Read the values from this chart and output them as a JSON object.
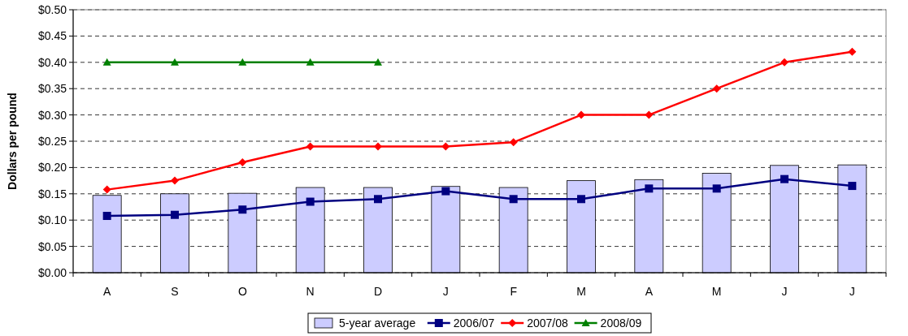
{
  "chart_data": {
    "type": "bar",
    "ylabel": "Dollars per pound",
    "categories": [
      "A",
      "S",
      "O",
      "N",
      "D",
      "J",
      "F",
      "M",
      "A",
      "M",
      "J",
      "J"
    ],
    "series": [
      {
        "name": "5-year average",
        "color": "#ccccff",
        "values": [
          0.147,
          0.15,
          0.151,
          0.162,
          0.162,
          0.164,
          0.162,
          0.175,
          0.177,
          0.189,
          0.204,
          0.205
        ]
      },
      {
        "name": "2006/07",
        "type": "line",
        "color": "#000080",
        "marker": "square",
        "values": [
          0.108,
          0.11,
          0.12,
          0.135,
          0.14,
          0.155,
          0.14,
          0.14,
          0.16,
          0.16,
          0.178,
          0.165
        ]
      },
      {
        "name": "2007/08",
        "type": "line",
        "color": "#ff0000",
        "marker": "diamond",
        "values": [
          0.158,
          0.175,
          0.21,
          0.24,
          0.24,
          0.24,
          0.248,
          0.3,
          0.3,
          0.35,
          0.4,
          0.42
        ]
      },
      {
        "name": "2008/09",
        "type": "line",
        "color": "#008000",
        "marker": "triangle",
        "values": [
          0.4,
          0.4,
          0.4,
          0.4,
          0.4,
          null,
          null,
          null,
          null,
          null,
          null,
          null
        ]
      }
    ],
    "ylim": [
      0,
      0.5
    ],
    "yticks": [
      {
        "value": 0,
        "label": "$0.00"
      },
      {
        "value": 0.05,
        "label": "$0.05"
      },
      {
        "value": 0.1,
        "label": "$0.10"
      },
      {
        "value": 0.15,
        "label": "$0.15"
      },
      {
        "value": 0.2,
        "label": "$0.20"
      },
      {
        "value": 0.25,
        "label": "$0.25"
      },
      {
        "value": 0.3,
        "label": "$0.30"
      },
      {
        "value": 0.35,
        "label": "$0.35"
      },
      {
        "value": 0.4,
        "label": "$0.40"
      },
      {
        "value": 0.45,
        "label": "$0.45"
      },
      {
        "value": 0.5,
        "label": "$0.50"
      }
    ],
    "grid": "y",
    "legend": "bottom"
  }
}
